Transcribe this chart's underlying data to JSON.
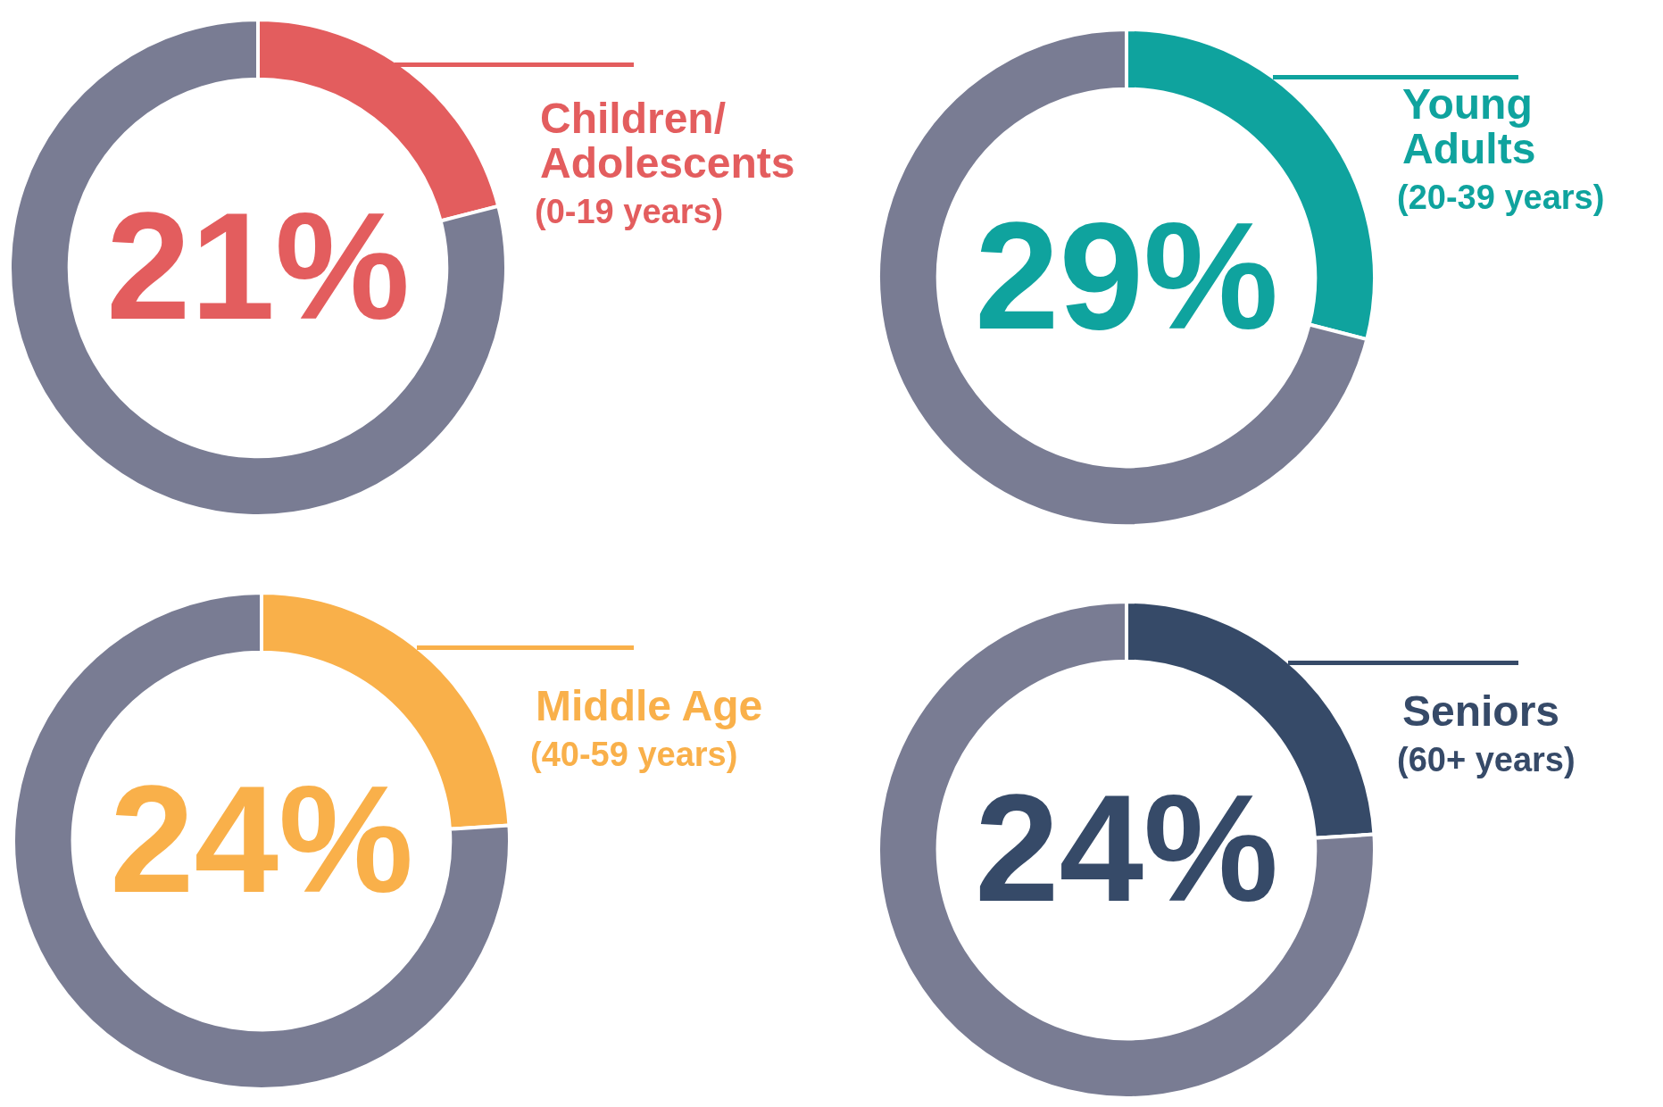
{
  "chart_data": [
    {
      "type": "donut",
      "categories": [
        "Children/ Adolescents",
        null
      ],
      "values": [
        21,
        79
      ],
      "colors": [
        "#e35d5e",
        "#797c93"
      ],
      "value_labels": [
        "21%",
        null
      ],
      "annotations": [
        "(0-19 years)"
      ]
    },
    {
      "type": "donut",
      "categories": [
        "Young Adults",
        null
      ],
      "values": [
        29,
        71
      ],
      "colors": [
        "#0fa39e",
        "#797c93"
      ],
      "value_labels": [
        "29%",
        null
      ],
      "annotations": [
        "(20-39 years)"
      ]
    },
    {
      "type": "donut",
      "categories": [
        "Middle Age",
        null
      ],
      "values": [
        24,
        76
      ],
      "colors": [
        "#f9b04a",
        "#797c93"
      ],
      "value_labels": [
        "24%",
        null
      ],
      "annotations": [
        "(40-59 years)"
      ]
    },
    {
      "type": "donut",
      "categories": [
        "Seniors",
        null
      ],
      "values": [
        24,
        76
      ],
      "colors": [
        "#364a68",
        "#797c93"
      ],
      "value_labels": [
        "24%",
        null
      ],
      "annotations": [
        "(60+ years)"
      ]
    }
  ]
}
